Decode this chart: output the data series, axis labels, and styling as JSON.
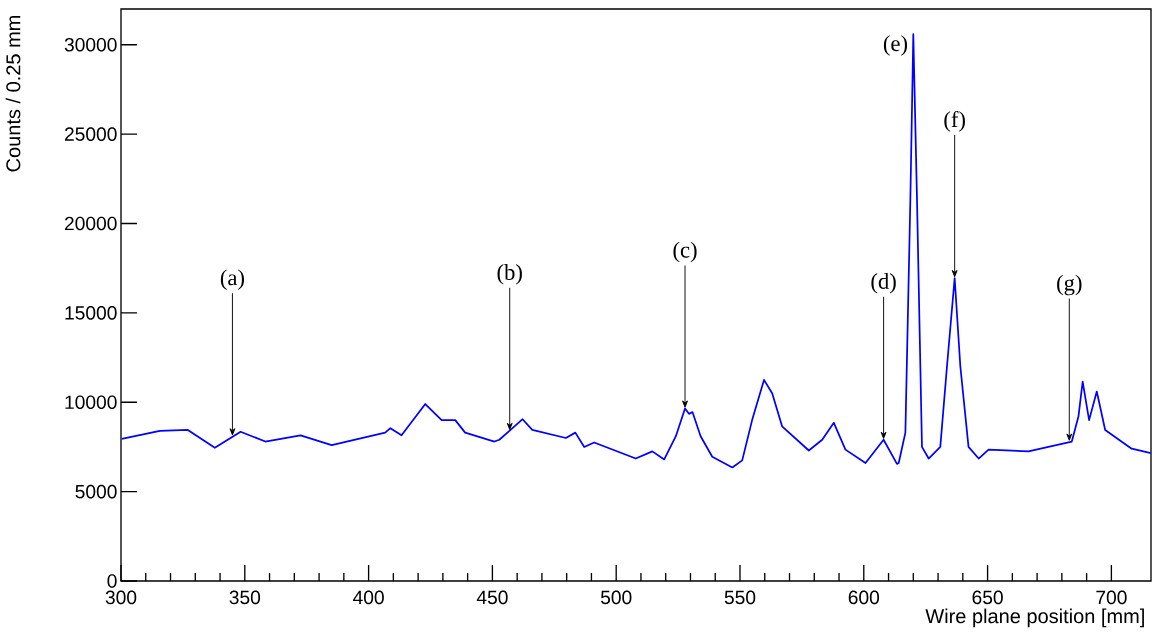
{
  "chart_data": {
    "type": "line",
    "xlabel": "Wire plane position [mm]",
    "ylabel": "Counts / 0.25 mm",
    "xlim": [
      300,
      716
    ],
    "ylim": [
      0,
      32000
    ],
    "xticks": [
      300,
      350,
      400,
      450,
      500,
      550,
      600,
      650,
      700
    ],
    "yticks": [
      0,
      5000,
      10000,
      15000,
      20000,
      25000,
      30000
    ],
    "grid": false,
    "marker": "none",
    "line_style": "solid",
    "series": [
      {
        "color": "#0000ff",
        "x": [
          300.3,
          315.7,
          327,
          337.9,
          348.3,
          358.3,
          372.5,
          385.1,
          406.7,
          408.8,
          413.3,
          422.9,
          429.5,
          435,
          439,
          450.8,
          452.8,
          462.2,
          466.1,
          479.7,
          483.5,
          487.1,
          491.1,
          507.9,
          514.6,
          519.4,
          524.1,
          527.8,
          529.4,
          530.8,
          534.1,
          538.8,
          546.9,
          550.9,
          554.9,
          559.7,
          563,
          567,
          577.8,
          583.2,
          587.9,
          592.6,
          600.7,
          608,
          613.4,
          614.1,
          616.8,
          618.8,
          620,
          621.5,
          623.5,
          626.2,
          630.9,
          633.6,
          636.7,
          639,
          642.3,
          646.4,
          650.4,
          666.5,
          684,
          686.7,
          688.4,
          691,
          694.1,
          697.5,
          708.2,
          716
        ],
        "values": [
          7950,
          8400,
          8450,
          7450,
          8350,
          7800,
          8150,
          7600,
          8300,
          8550,
          8150,
          9900,
          9000,
          9000,
          8300,
          7800,
          7900,
          9050,
          8450,
          8000,
          8300,
          7500,
          7750,
          6850,
          7250,
          6800,
          8100,
          9650,
          9350,
          9450,
          8100,
          6950,
          6350,
          6750,
          9000,
          11250,
          10500,
          8650,
          7300,
          7900,
          8850,
          7350,
          6600,
          7900,
          6550,
          6600,
          8300,
          21300,
          30600,
          21300,
          7500,
          6850,
          7500,
          12000,
          16950,
          12000,
          7500,
          6850,
          7350,
          7250,
          7800,
          9200,
          11150,
          9000,
          10600,
          8450,
          7400,
          7150
        ]
      }
    ],
    "annotations": [
      {
        "text": "(a)",
        "x": 345,
        "y": 8100
      },
      {
        "text": "(b)",
        "x": 457,
        "y": 8400
      },
      {
        "text": "(c)",
        "x": 527.8,
        "y": 9650
      },
      {
        "text": "(d)",
        "x": 608,
        "y": 7900
      },
      {
        "text": "(e)",
        "x": 620,
        "y": 30600
      },
      {
        "text": "(f)",
        "x": 636.7,
        "y": 16950
      },
      {
        "text": "(g)",
        "x": 683,
        "y": 7800
      }
    ]
  }
}
